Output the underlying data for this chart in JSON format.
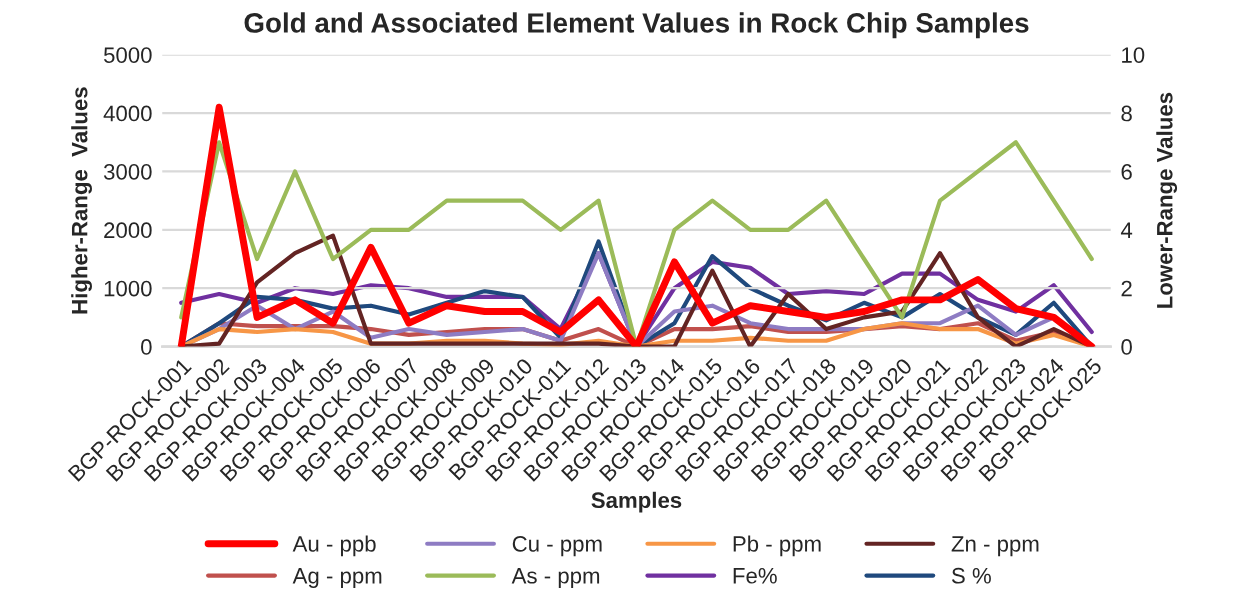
{
  "chart_data": {
    "type": "line",
    "title": "Gold and Associated Element Values in Rock Chip Samples",
    "xlabel": "Samples",
    "ylabel": "Higher-Range  Values",
    "y2label": "Lower-Range Values",
    "categories": [
      "BGP-ROCK-001",
      "BGP-ROCK-002",
      "BGP-ROCK-003",
      "BGP-ROCK-004",
      "BGP-ROCK-005",
      "BGP-ROCK-006",
      "BGP-ROCK-007",
      "BGP-ROCK-008",
      "BGP-ROCK-009",
      "BGP-ROCK-010",
      "BGP-ROCK-011",
      "BGP-ROCK-012",
      "BGP-ROCK-013",
      "BGP-ROCK-014",
      "BGP-ROCK-015",
      "BGP-ROCK-016",
      "BGP-ROCK-017",
      "BGP-ROCK-018",
      "BGP-ROCK-019",
      "BGP-ROCK-020",
      "BGP-ROCK-021",
      "BGP-ROCK-022",
      "BGP-ROCK-023",
      "BGP-ROCK-024",
      "BGP-ROCK-025"
    ],
    "series": [
      {
        "name": "Au - ppb",
        "color": "#ff0000",
        "values": [
          0,
          4100,
          500,
          800,
          400,
          1700,
          400,
          700,
          600,
          600,
          250,
          800,
          0,
          1450,
          400,
          700,
          600,
          500,
          600,
          800,
          800,
          1150,
          650,
          500,
          0
        ]
      },
      {
        "name": "Cu - ppm",
        "color": "#8e7cc3",
        "values": [
          0,
          300,
          700,
          300,
          600,
          150,
          300,
          200,
          250,
          300,
          100,
          1600,
          0,
          600,
          700,
          400,
          300,
          300,
          300,
          400,
          400,
          700,
          200,
          500,
          0
        ]
      },
      {
        "name": "Pb - ppm",
        "color": "#f79646",
        "values": [
          0,
          300,
          250,
          300,
          250,
          50,
          50,
          100,
          100,
          50,
          30,
          100,
          0,
          100,
          100,
          150,
          100,
          100,
          300,
          400,
          300,
          300,
          50,
          200,
          0
        ]
      },
      {
        "name": "Zn - ppm",
        "color": "#632423",
        "values": [
          0,
          50,
          1100,
          1600,
          1900,
          50,
          50,
          50,
          50,
          50,
          50,
          50,
          0,
          0,
          1300,
          0,
          900,
          300,
          500,
          600,
          1600,
          500,
          0,
          300,
          0
        ]
      },
      {
        "name": "Ag - ppm",
        "color": "#c0504d",
        "axis": "y2",
        "values": [
          0,
          0.8,
          0.7,
          0.7,
          0.7,
          0.6,
          0.4,
          0.5,
          0.6,
          0.6,
          0.2,
          0.6,
          0,
          0.6,
          0.6,
          0.7,
          0.5,
          0.5,
          0.6,
          0.7,
          0.6,
          0.8,
          0.2,
          0.5,
          0
        ]
      },
      {
        "name": "As - ppm",
        "color": "#9bbb59",
        "values": [
          500,
          3500,
          1500,
          3000,
          1500,
          2000,
          2000,
          2500,
          2500,
          2500,
          2000,
          2500,
          0,
          2000,
          2500,
          2000,
          2000,
          2500,
          1500,
          500,
          2500,
          3000,
          3500,
          2500,
          1500
        ]
      },
      {
        "name": "Fe%",
        "color": "#7030a0",
        "axis": "y2",
        "values": [
          1.5,
          1.8,
          1.5,
          2.0,
          1.8,
          2.1,
          2.0,
          1.7,
          1.7,
          1.7,
          0.6,
          3.2,
          0,
          2.0,
          2.9,
          2.7,
          1.8,
          1.9,
          1.8,
          2.5,
          2.5,
          1.6,
          1.2,
          2.1,
          0.5
        ]
      },
      {
        "name": "S %",
        "color": "#1f497d",
        "axis": "y2",
        "values": [
          0,
          0.8,
          1.7,
          1.6,
          1.3,
          1.4,
          1.1,
          1.5,
          1.9,
          1.7,
          0.3,
          3.6,
          0,
          0.8,
          3.1,
          2.0,
          1.4,
          0.9,
          1.5,
          1.0,
          1.8,
          1.0,
          0.4,
          1.5,
          0
        ]
      }
    ],
    "ylim": [
      0,
      5000
    ],
    "yticks": [
      0,
      1000,
      2000,
      3000,
      4000,
      5000
    ],
    "y2lim": [
      0,
      10
    ],
    "y2ticks": [
      0,
      2,
      4,
      6,
      8,
      10
    ],
    "grid": "y",
    "legend": "bottom"
  }
}
